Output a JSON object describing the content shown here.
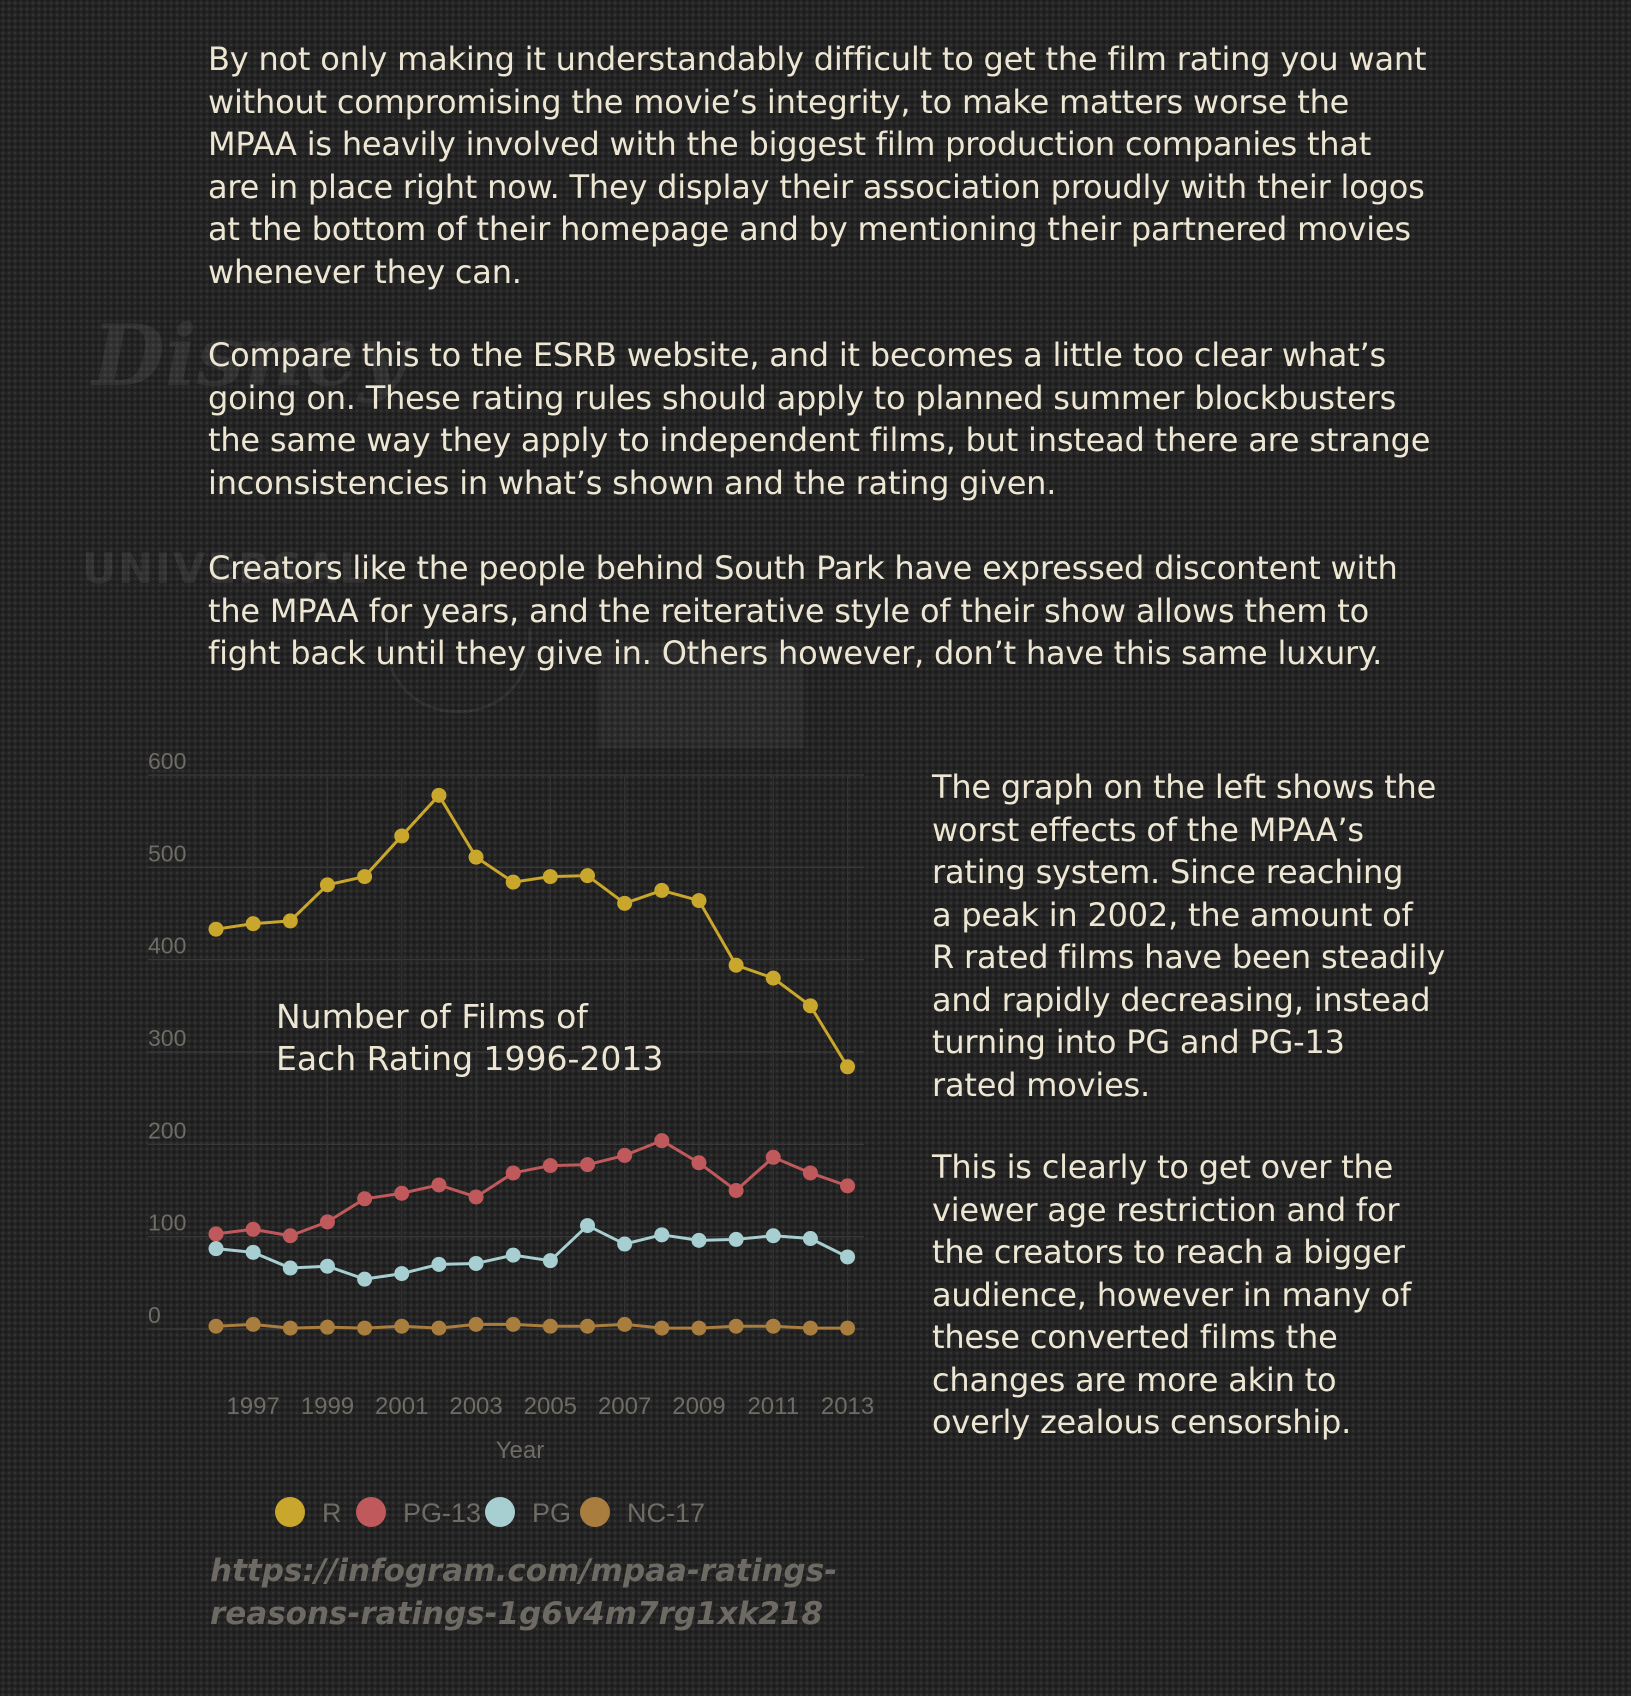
{
  "article": {
    "paragraphs": [
      [
        "By not only making it understandably difficult to get the film rating you want",
        "without compromising the movie’s integrity, to make matters worse the",
        "MPAA is heavily involved with the biggest film production companies that",
        "are in place right now. They display their association proudly with their logos",
        "at the bottom of their homepage and by mentioning their partnered movies",
        "whenever they can."
      ],
      [
        "Compare this to the ESRB website, and it becomes a little too clear what’s",
        "going on. These rating rules should apply to planned summer blockbusters",
        "the same way they apply to independent films, but instead there are strange",
        "inconsistencies in what’s shown and the rating given."
      ],
      [
        "Creators like the people behind South Park have expressed discontent with",
        "the MPAA for years, and the reiterative style of their show allows them to",
        "fight back until they give in. Others however, don’t have this same luxury."
      ]
    ],
    "side_paragraphs": [
      [
        "The graph on the left shows the",
        "worst effects of the MPAA’s",
        "rating system. Since reaching",
        "a peak in 2002, the amount of",
        "R rated films have been steadily",
        "and rapidly decreasing, instead",
        "turning into PG and PG-13",
        "rated movies."
      ],
      [
        "This is clearly to get over the",
        "viewer age restriction and for",
        "the creators to reach a bigger",
        "audience, however in many of",
        "these converted films the",
        "changes are more akin to",
        "overly zealous censorship."
      ]
    ]
  },
  "background_logos": [
    "Disney",
    "UNIVERSAL"
  ],
  "source": {
    "lines": [
      "https://infogram.com/mpaa-ratings-",
      "reasons-ratings-1g6v4m7rg1xk218"
    ]
  },
  "chart_data": {
    "type": "line",
    "title_lines": [
      "Number of Films of",
      "Each Rating 1996-2013"
    ],
    "xlabel": "Year",
    "ylabel": "",
    "x": [
      1996,
      1997,
      1998,
      1999,
      2000,
      2001,
      2002,
      2003,
      2004,
      2005,
      2006,
      2007,
      2008,
      2009,
      2010,
      2011,
      2012,
      2013
    ],
    "x_tick_labels": [
      "1997",
      "1999",
      "2001",
      "2003",
      "2005",
      "2007",
      "2009",
      "2011",
      "2013"
    ],
    "y_tick_labels": [
      "600",
      "500",
      "400",
      "300",
      "200",
      "100",
      "0"
    ],
    "ylim": [
      0,
      600
    ],
    "grid": true,
    "legend_position": "bottom",
    "series": [
      {
        "name": "R",
        "color": "#c9a62c",
        "values": [
          433,
          439,
          442,
          481,
          490,
          534,
          578,
          511,
          484,
          490,
          491,
          461,
          475,
          464,
          394,
          380,
          350,
          284
        ]
      },
      {
        "name": "PG-13",
        "color": "#c0595c",
        "values": [
          103,
          108,
          101,
          116,
          141,
          147,
          156,
          143,
          169,
          177,
          178,
          188,
          204,
          180,
          150,
          186,
          169,
          155
        ]
      },
      {
        "name": "PG",
        "color": "#a7cfd1",
        "values": [
          87,
          83,
          66,
          68,
          54,
          60,
          70,
          71,
          80,
          74,
          112,
          92,
          102,
          96,
          97,
          101,
          98,
          78
        ]
      },
      {
        "name": "NC-17",
        "color": "#a97d3d",
        "values": [
          3,
          5,
          1,
          2,
          1,
          3,
          1,
          5,
          5,
          3,
          3,
          5,
          1,
          1,
          3,
          3,
          1,
          1
        ]
      }
    ]
  }
}
